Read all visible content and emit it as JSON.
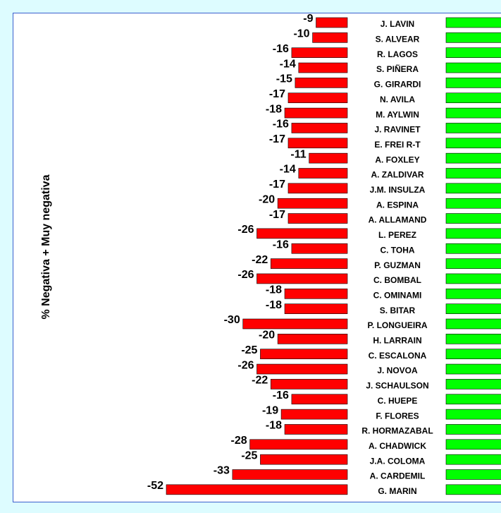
{
  "chart_data": {
    "type": "bar",
    "orientation": "horizontal",
    "y_label": "% Negativa + Muy negativa",
    "color": "#ff0000",
    "categories": [
      "J. LAVIN",
      "S. ALVEAR",
      "R. LAGOS",
      "S. PIÑERA",
      "G. GIRARDI",
      "N. AVILA",
      "M. AYLWIN",
      "J. RAVINET",
      "E. FREI R-T",
      "A. FOXLEY",
      "A. ZALDIVAR",
      "J.M. INSULZA",
      "A. ESPINA",
      "A. ALLAMAND",
      "L. PEREZ",
      "C. TOHA",
      "P. GUZMAN",
      "C. BOMBAL",
      "C. OMINAMI",
      "S. BITAR",
      "P. LONGUEIRA",
      "H. LARRAIN",
      "C. ESCALONA",
      "J. NOVOA",
      "J. SCHAULSON",
      "C. HUEPE",
      "F. FLORES",
      "R. HORMAZABAL",
      "A. CHADWICK",
      "J.A. COLOMA",
      "A. CARDEMIL",
      "G. MARIN"
    ],
    "values": [
      -9,
      -10,
      -16,
      -14,
      -15,
      -17,
      -18,
      -16,
      -17,
      -11,
      -14,
      -17,
      -20,
      -17,
      -26,
      -16,
      -22,
      -26,
      -18,
      -18,
      -30,
      -20,
      -25,
      -26,
      -22,
      -16,
      -19,
      -18,
      -28,
      -25,
      -33,
      -52
    ]
  }
}
